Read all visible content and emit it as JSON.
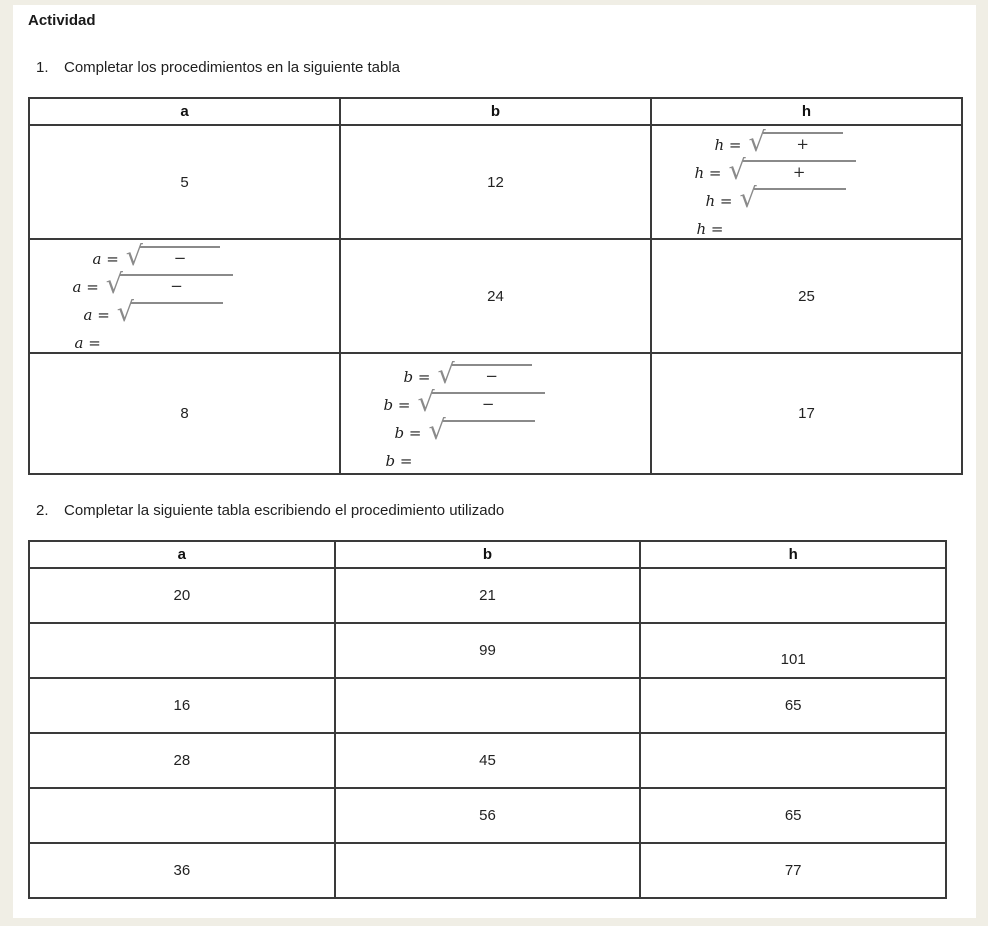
{
  "page": {
    "title": "Actividad",
    "background_color": "#f0eee5",
    "paper_color": "#ffffff",
    "table_border_color": "#3a3a3a",
    "radical_color": "#8a8a8a"
  },
  "instructions": [
    {
      "number": "1.",
      "text": "Completar los procedimientos en la siguiente tabla"
    },
    {
      "number": "2.",
      "text": "Completar la siguiente tabla escribiendo el procedimiento utilizado"
    }
  ],
  "radical_symbol": "√",
  "table1": {
    "headers": [
      "a",
      "b",
      "h"
    ],
    "row1": {
      "a": "5",
      "b": "12"
    },
    "row2": {
      "b": "24",
      "h": "25"
    },
    "row3": {
      "a": "8",
      "h": "17"
    },
    "h_procedure": {
      "line1_lhs": "h =",
      "line1_op": "+",
      "line2_lhs": "h =",
      "line2_op": "+",
      "line3_lhs": "h =",
      "line4_lhs": "h ="
    },
    "a_procedure": {
      "line1_lhs": "a =",
      "line1_op": "−",
      "line2_lhs": "a =",
      "line2_op": "−",
      "line3_lhs": "a =",
      "line4_lhs": "a ="
    },
    "b_procedure": {
      "line1_lhs": "b =",
      "line1_op": "−",
      "line2_lhs": "b =",
      "line2_op": "−",
      "line3_lhs": "b =",
      "line4_lhs": "b ="
    }
  },
  "table2": {
    "headers": [
      "a",
      "b",
      "h"
    ],
    "rows": [
      {
        "a": "20",
        "b": "21",
        "h": ""
      },
      {
        "a": "",
        "b": "99",
        "h": "101"
      },
      {
        "a": "16",
        "b": "",
        "h": "65"
      },
      {
        "a": "28",
        "b": "45",
        "h": ""
      },
      {
        "a": "",
        "b": "56",
        "h": "65"
      },
      {
        "a": "36",
        "b": "",
        "h": "77"
      }
    ]
  }
}
